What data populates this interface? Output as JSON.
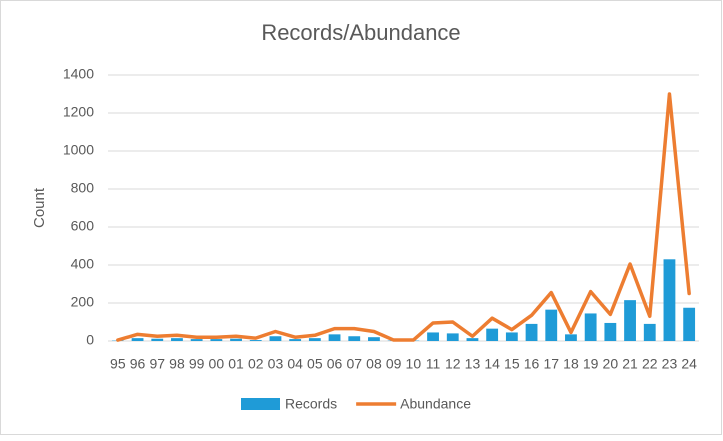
{
  "chart_data": {
    "type": "bar",
    "title": "Records/Abundance",
    "y_label": "Count",
    "categories": [
      "95",
      "96",
      "97",
      "98",
      "99",
      "00",
      "01",
      "02",
      "03",
      "04",
      "05",
      "06",
      "07",
      "08",
      "09",
      "10",
      "11",
      "12",
      "13",
      "14",
      "15",
      "16",
      "17",
      "18",
      "19",
      "20",
      "21",
      "22",
      "23",
      "24"
    ],
    "series": [
      {
        "name": "Records",
        "type": "bar",
        "color": "#1f9bd7",
        "values": [
          2,
          15,
          12,
          15,
          10,
          10,
          12,
          5,
          25,
          10,
          15,
          35,
          25,
          20,
          2,
          2,
          45,
          40,
          15,
          65,
          45,
          90,
          165,
          35,
          145,
          95,
          215,
          90,
          430,
          175
        ]
      },
      {
        "name": "Abundance",
        "type": "line",
        "color": "#ed7d31",
        "values": [
          5,
          35,
          25,
          30,
          20,
          20,
          25,
          15,
          50,
          20,
          30,
          65,
          65,
          50,
          5,
          5,
          95,
          100,
          25,
          120,
          60,
          135,
          255,
          45,
          260,
          140,
          405,
          130,
          1300,
          250
        ]
      }
    ],
    "ylim": [
      0,
      1400
    ],
    "yticks": [
      0,
      200,
      400,
      600,
      800,
      1000,
      1200,
      1400
    ],
    "grid": true,
    "legend": "bottom"
  }
}
